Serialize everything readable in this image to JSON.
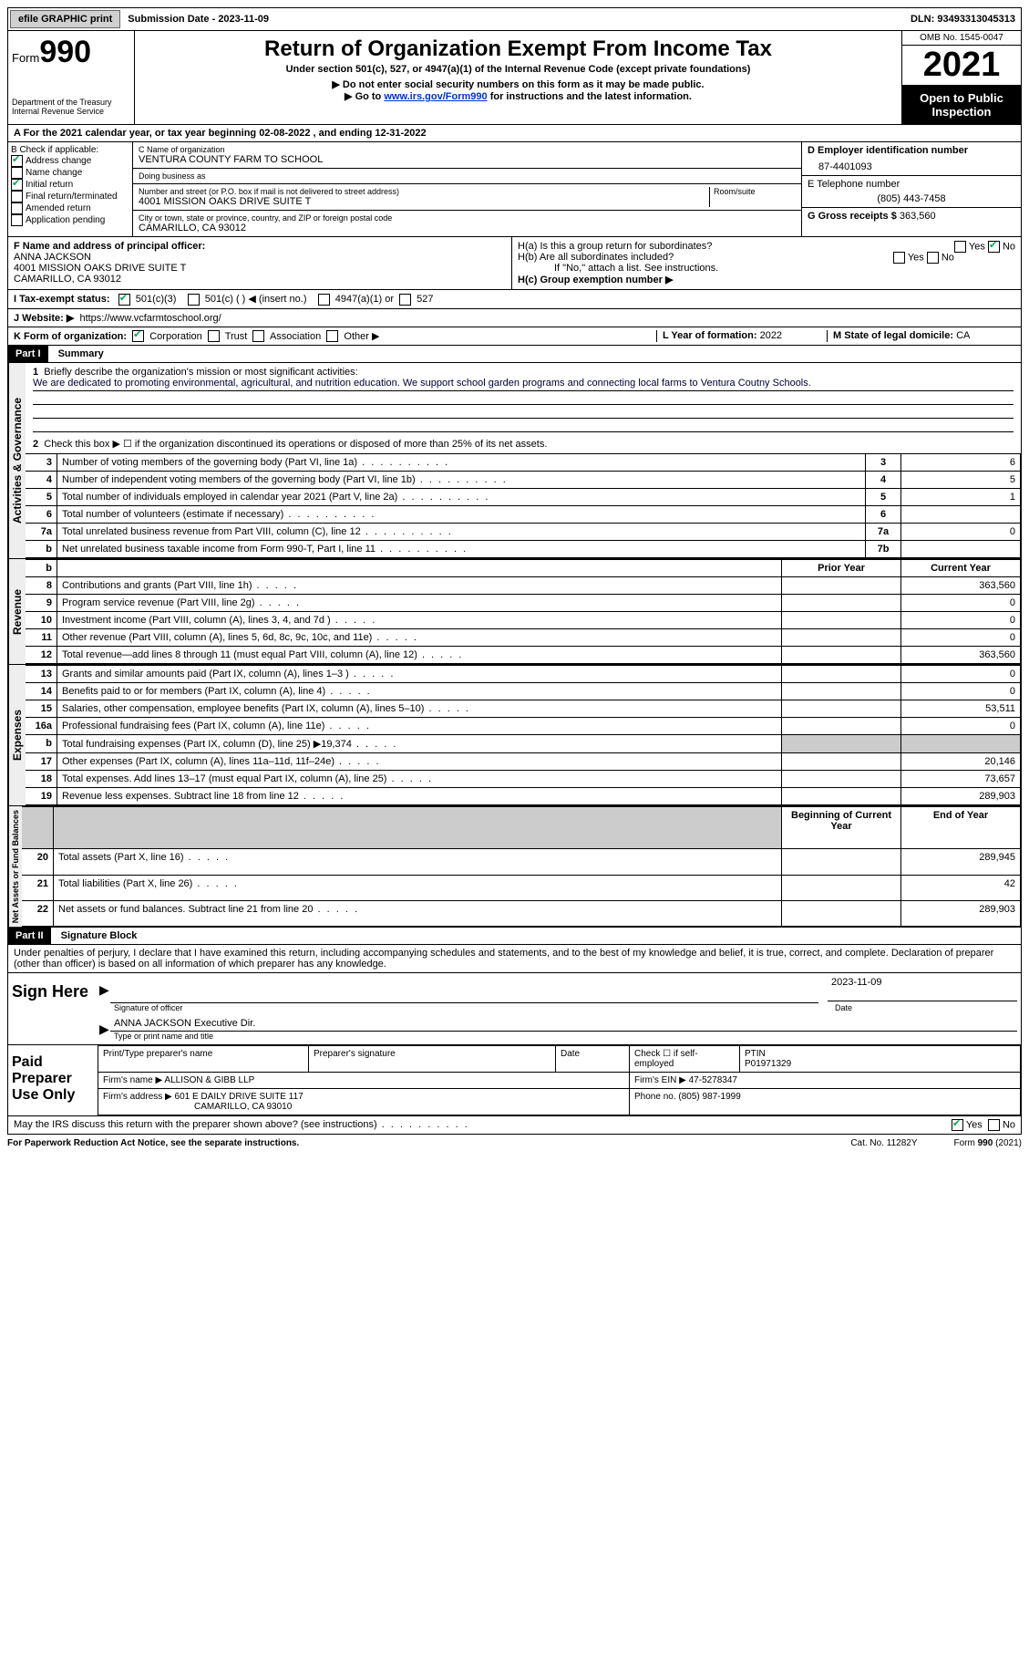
{
  "topbar": {
    "efile_label": "efile GRAPHIC print",
    "submission_label": "Submission Date - 2023-11-09",
    "dln_label": "DLN: 93493313045313"
  },
  "header": {
    "form_label": "Form",
    "form_num": "990",
    "dept": "Department of the Treasury Internal Revenue Service",
    "title": "Return of Organization Exempt From Income Tax",
    "subtitle": "Under section 501(c), 527, or 4947(a)(1) of the Internal Revenue Code (except private foundations)",
    "note1": "▶ Do not enter social security numbers on this form as it may be made public.",
    "note2_pre": "▶ Go to ",
    "note2_link": "www.irs.gov/Form990",
    "note2_post": " for instructions and the latest information.",
    "omb": "OMB No. 1545-0047",
    "year": "2021",
    "open": "Open to Public Inspection"
  },
  "line_a": "A For the 2021 calendar year, or tax year beginning 02-08-2022   , and ending 12-31-2022",
  "b": {
    "label": "B Check if applicable:",
    "items": [
      "Address change",
      "Name change",
      "Initial return",
      "Final return/terminated",
      "Amended return",
      "Application pending"
    ],
    "checked": [
      true,
      false,
      true,
      false,
      false,
      false
    ]
  },
  "c": {
    "name_label": "C Name of organization",
    "name": "VENTURA COUNTY FARM TO SCHOOL",
    "dba_label": "Doing business as",
    "dba": "",
    "street_label": "Number and street (or P.O. box if mail is not delivered to street address)",
    "room_label": "Room/suite",
    "street": "4001 MISSION OAKS DRIVE SUITE T",
    "city_label": "City or town, state or province, country, and ZIP or foreign postal code",
    "city": "CAMARILLO, CA  93012"
  },
  "d": {
    "label": "D Employer identification number",
    "val": "87-4401093"
  },
  "e": {
    "label": "E Telephone number",
    "val": "(805) 443-7458"
  },
  "g": {
    "label": "G Gross receipts $",
    "val": "363,560"
  },
  "f": {
    "label": "F Name and address of principal officer:",
    "name": "ANNA JACKSON",
    "street": "4001 MISSION OAKS DRIVE SUITE T",
    "city": "CAMARILLO, CA  93012"
  },
  "h": {
    "a_label": "H(a)  Is this a group return for subordinates?",
    "b_label": "H(b)  Are all subordinates included?",
    "b_note": "If \"No,\" attach a list. See instructions.",
    "c_label": "H(c)  Group exemption number ▶",
    "yes": "Yes",
    "no": "No",
    "a_no_checked": true
  },
  "i": {
    "label": "I    Tax-exempt status:",
    "o1": "501(c)(3)",
    "o1_checked": true,
    "o2": "501(c) (  ) ◀ (insert no.)",
    "o3": "4947(a)(1) or",
    "o4": "527"
  },
  "j": {
    "label": "J   Website: ▶",
    "val": "https://www.vcfarmtoschool.org/"
  },
  "k": {
    "label": "K Form of organization:",
    "o1": "Corporation",
    "o1_checked": true,
    "o2": "Trust",
    "o3": "Association",
    "o4": "Other ▶"
  },
  "l": {
    "label": "L Year of formation:",
    "val": "2022"
  },
  "m": {
    "label": "M State of legal domicile:",
    "val": "CA"
  },
  "part1": {
    "header": "Part I",
    "title": "Summary",
    "tab_activities": "Activities & Governance",
    "tab_revenue": "Revenue",
    "tab_expenses": "Expenses",
    "tab_net": "Net Assets or Fund Balances",
    "l1_label": "Briefly describe the organization's mission or most significant activities:",
    "l1_text": "We are dedicated to promoting environmental, agricultural, and nutrition education. We support school garden programs and connecting local farms to Ventura Coutny Schools.",
    "l2": "Check this box ▶ ☐ if the organization discontinued its operations or disposed of more than 25% of its net assets.",
    "lines_ag": [
      {
        "n": "3",
        "d": "Number of voting members of the governing body (Part VI, line 1a)",
        "b": "3",
        "v": "6"
      },
      {
        "n": "4",
        "d": "Number of independent voting members of the governing body (Part VI, line 1b)",
        "b": "4",
        "v": "5"
      },
      {
        "n": "5",
        "d": "Total number of individuals employed in calendar year 2021 (Part V, line 2a)",
        "b": "5",
        "v": "1"
      },
      {
        "n": "6",
        "d": "Total number of volunteers (estimate if necessary)",
        "b": "6",
        "v": ""
      },
      {
        "n": "7a",
        "d": "Total unrelated business revenue from Part VIII, column (C), line 12",
        "b": "7a",
        "v": "0"
      },
      {
        "n": "b",
        "d": "Net unrelated business taxable income from Form 990-T, Part I, line 11",
        "b": "7b",
        "v": ""
      }
    ],
    "col_prior": "Prior Year",
    "col_current": "Current Year",
    "lines_rev": [
      {
        "n": "8",
        "d": "Contributions and grants (Part VIII, line 1h)",
        "p": "",
        "c": "363,560"
      },
      {
        "n": "9",
        "d": "Program service revenue (Part VIII, line 2g)",
        "p": "",
        "c": "0"
      },
      {
        "n": "10",
        "d": "Investment income (Part VIII, column (A), lines 3, 4, and 7d )",
        "p": "",
        "c": "0"
      },
      {
        "n": "11",
        "d": "Other revenue (Part VIII, column (A), lines 5, 6d, 8c, 9c, 10c, and 11e)",
        "p": "",
        "c": "0"
      },
      {
        "n": "12",
        "d": "Total revenue—add lines 8 through 11 (must equal Part VIII, column (A), line 12)",
        "p": "",
        "c": "363,560"
      }
    ],
    "lines_exp": [
      {
        "n": "13",
        "d": "Grants and similar amounts paid (Part IX, column (A), lines 1–3 )",
        "p": "",
        "c": "0"
      },
      {
        "n": "14",
        "d": "Benefits paid to or for members (Part IX, column (A), line 4)",
        "p": "",
        "c": "0"
      },
      {
        "n": "15",
        "d": "Salaries, other compensation, employee benefits (Part IX, column (A), lines 5–10)",
        "p": "",
        "c": "53,511"
      },
      {
        "n": "16a",
        "d": "Professional fundraising fees (Part IX, column (A), line 11e)",
        "p": "",
        "c": "0"
      },
      {
        "n": "b",
        "d": "Total fundraising expenses (Part IX, column (D), line 25) ▶19,374",
        "p": "shade",
        "c": "shade"
      },
      {
        "n": "17",
        "d": "Other expenses (Part IX, column (A), lines 11a–11d, 11f–24e)",
        "p": "",
        "c": "20,146"
      },
      {
        "n": "18",
        "d": "Total expenses. Add lines 13–17 (must equal Part IX, column (A), line 25)",
        "p": "",
        "c": "73,657"
      },
      {
        "n": "19",
        "d": "Revenue less expenses. Subtract line 18 from line 12",
        "p": "",
        "c": "289,903"
      }
    ],
    "col_begin": "Beginning of Current Year",
    "col_end": "End of Year",
    "lines_net": [
      {
        "n": "20",
        "d": "Total assets (Part X, line 16)",
        "p": "",
        "c": "289,945"
      },
      {
        "n": "21",
        "d": "Total liabilities (Part X, line 26)",
        "p": "",
        "c": "42"
      },
      {
        "n": "22",
        "d": "Net assets or fund balances. Subtract line 21 from line 20",
        "p": "",
        "c": "289,903"
      }
    ]
  },
  "part2": {
    "header": "Part II",
    "title": "Signature Block",
    "penalty": "Under penalties of perjury, I declare that I have examined this return, including accompanying schedules and statements, and to the best of my knowledge and belief, it is true, correct, and complete. Declaration of preparer (other than officer) is based on all information of which preparer has any knowledge.",
    "sign_here": "Sign Here",
    "sig_officer": "Signature of officer",
    "sig_date_lbl": "Date",
    "sig_date": "2023-11-09",
    "sig_name": "ANNA JACKSON Executive Dir.",
    "sig_name_lbl": "Type or print name and title",
    "paid": "Paid Preparer Use Only",
    "prep_name_lbl": "Print/Type preparer's name",
    "prep_sig_lbl": "Preparer's signature",
    "prep_date_lbl": "Date",
    "prep_self_lbl": "Check ☐ if self-employed",
    "ptin_lbl": "PTIN",
    "ptin": "P01971329",
    "firm_name_lbl": "Firm's name    ▶",
    "firm_name": "ALLISON & GIBB LLP",
    "firm_ein_lbl": "Firm's EIN ▶",
    "firm_ein": "47-5278347",
    "firm_addr_lbl": "Firm's address ▶",
    "firm_addr": "601 E DAILY DRIVE SUITE 117",
    "firm_city": "CAMARILLO, CA  93010",
    "phone_lbl": "Phone no.",
    "phone": "(805) 987-1999",
    "discuss": "May the IRS discuss this return with the preparer shown above? (see instructions)",
    "discuss_yes_checked": true
  },
  "footer": {
    "left": "For Paperwork Reduction Act Notice, see the separate instructions.",
    "center": "Cat. No. 11282Y",
    "right": "Form 990 (2021)"
  },
  "colors": {
    "link": "#0033cc",
    "header_bg": "#000000",
    "shade": "#cccccc"
  }
}
